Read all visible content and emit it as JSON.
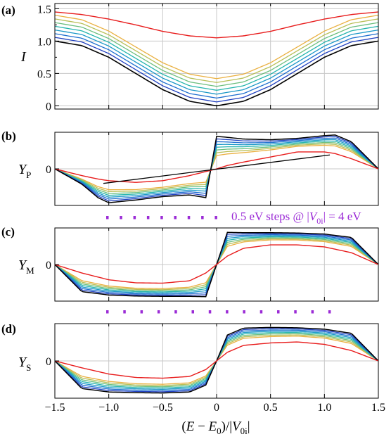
{
  "chart_data": {
    "type": "line",
    "xlabel": "(E − E0)/|V0i|",
    "xlim": [
      -1.5,
      1.5
    ],
    "xticks": [
      -1.5,
      -1.0,
      -0.5,
      0,
      0.5,
      1.0,
      1.5
    ],
    "xtick_labels": [
      "−1.5",
      "−1.0",
      "−0.5",
      "0",
      "0.5",
      "1.0",
      "1.5"
    ],
    "grid": true,
    "colors": {
      "zero_damping": "#000000",
      "ramp": [
        "#1f3fbf",
        "#1e6fd0",
        "#1b98c8",
        "#25b5ad",
        "#6cbf7f",
        "#b8bf57",
        "#eab040"
      ],
      "highlight": "#e81c1c",
      "annotation": "#9b2bd6"
    },
    "annotation": {
      "text": "0.5 eV steps @ |V0i| = 4 eV",
      "dots_b_count": 9,
      "dots_c_count": 14
    },
    "panels": [
      {
        "id": "a",
        "panel_label": "(a)",
        "ylabel": "I",
        "ylim": [
          -0.05,
          1.58
        ],
        "yticks": [
          0,
          0.5,
          1.0,
          1.5
        ],
        "ytick_labels": [
          "0",
          "0.5",
          "1.0",
          "1.5"
        ],
        "series_count": 9,
        "x": [
          -1.5,
          -1.25,
          -1.0,
          -0.75,
          -0.5,
          -0.25,
          0,
          0.25,
          0.5,
          0.75,
          1.0,
          1.25,
          1.5
        ],
        "offsets": [
          0,
          0.06,
          0.12,
          0.18,
          0.24,
          0.3,
          0.36,
          0.42
        ],
        "base_curve": [
          1.0,
          0.93,
          0.75,
          0.5,
          0.25,
          0.07,
          0.0,
          0.07,
          0.25,
          0.5,
          0.75,
          0.93,
          1.0
        ],
        "highlight_curve": [
          1.45,
          1.41,
          1.34,
          1.25,
          1.15,
          1.08,
          1.05,
          1.08,
          1.15,
          1.25,
          1.34,
          1.41,
          1.45
        ]
      },
      {
        "id": "b",
        "panel_label": "(b)",
        "ylabel": "YP",
        "ylim": [
          -1.08,
          1.08
        ],
        "yticks": [
          0
        ],
        "ytick_labels": [
          "0"
        ],
        "series_count": 9,
        "x": [
          -1.5,
          -1.25,
          -1.1,
          -1.0,
          -0.75,
          -0.5,
          -0.25,
          -0.1,
          0,
          0.1,
          0.25,
          0.5,
          0.75,
          1.0,
          1.1,
          1.25,
          1.5
        ],
        "zero_damping": [
          0,
          -0.45,
          -0.85,
          -1.0,
          -0.92,
          -0.82,
          -0.77,
          -0.85,
          0.96,
          0.93,
          0.88,
          0.86,
          0.9,
          0.98,
          1.0,
          0.8,
          0
        ],
        "highlight_curve": [
          0,
          -0.2,
          -0.3,
          -0.35,
          -0.4,
          -0.35,
          -0.2,
          -0.08,
          0,
          0.1,
          0.2,
          0.35,
          0.5,
          0.5,
          0.45,
          0.3,
          0
        ],
        "black_diagonal": [
          [
            -1.05,
            -0.43
          ],
          [
            1.05,
            0.41
          ]
        ]
      },
      {
        "id": "c",
        "panel_label": "(c)",
        "ylabel": "YM",
        "ylim": [
          -1.08,
          1.08
        ],
        "yticks": [
          0
        ],
        "ytick_labels": [
          "0"
        ],
        "series_count": 9,
        "x": [
          -1.5,
          -1.25,
          -1.0,
          -0.75,
          -0.5,
          -0.25,
          -0.1,
          0,
          0.1,
          0.25,
          0.5,
          0.75,
          1.0,
          1.25,
          1.5
        ],
        "zero_damping": [
          0,
          -0.8,
          -0.9,
          -0.93,
          -0.94,
          -0.94,
          -0.95,
          0,
          0.95,
          0.94,
          0.94,
          0.93,
          0.9,
          0.8,
          0
        ],
        "highlight_curve": [
          0,
          -0.25,
          -0.45,
          -0.54,
          -0.55,
          -0.48,
          -0.25,
          0,
          0.25,
          0.48,
          0.58,
          0.58,
          0.52,
          0.35,
          0
        ]
      },
      {
        "id": "d",
        "panel_label": "(d)",
        "ylabel": "YS",
        "ylim": [
          -1.08,
          1.08
        ],
        "yticks": [
          0
        ],
        "ytick_labels": [
          "0"
        ],
        "series_count": 9,
        "x": [
          -1.5,
          -1.25,
          -1.0,
          -0.75,
          -0.5,
          -0.25,
          -0.1,
          0,
          0.1,
          0.25,
          0.5,
          0.75,
          1.0,
          1.25,
          1.5
        ],
        "zero_damping": [
          0,
          -0.8,
          -0.9,
          -0.92,
          -0.93,
          -0.9,
          -0.7,
          0,
          0.75,
          0.95,
          0.97,
          0.96,
          0.92,
          0.8,
          0
        ],
        "highlight_curve": [
          0,
          -0.2,
          -0.38,
          -0.48,
          -0.5,
          -0.45,
          -0.25,
          0,
          0.25,
          0.45,
          0.52,
          0.55,
          0.48,
          0.3,
          0
        ]
      }
    ]
  }
}
